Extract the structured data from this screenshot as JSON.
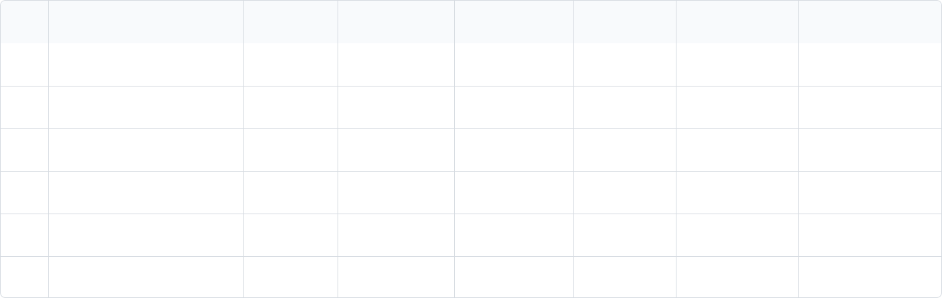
{
  "table": {
    "columns": [
      "",
      "",
      "",
      "",
      "",
      "",
      "",
      ""
    ],
    "rows": [
      [
        "",
        "",
        "",
        "",
        "",
        "",
        "",
        ""
      ],
      [
        "",
        "",
        "",
        "",
        "",
        "",
        "",
        ""
      ],
      [
        "",
        "",
        "",
        "",
        "",
        "",
        "",
        ""
      ],
      [
        "",
        "",
        "",
        "",
        "",
        "",
        "",
        ""
      ],
      [
        "",
        "",
        "",
        "",
        "",
        "",
        "",
        ""
      ],
      [
        "",
        "",
        "",
        "",
        "",
        "",
        "",
        ""
      ]
    ]
  }
}
